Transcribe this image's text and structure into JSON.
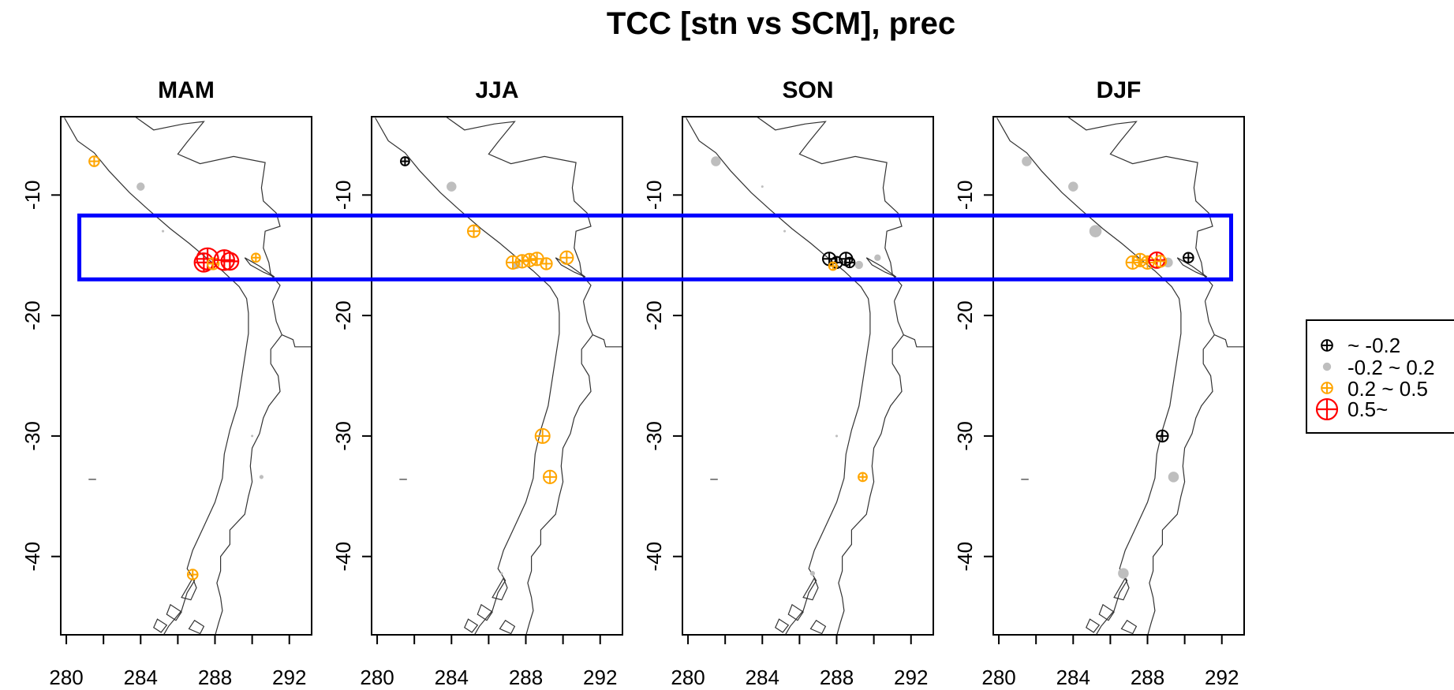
{
  "title": "TCC [stn vs SCM], prec",
  "panels": [
    {
      "name": "MAM"
    },
    {
      "name": "JJA"
    },
    {
      "name": "SON"
    },
    {
      "name": "DJF"
    }
  ],
  "x_ticks": [
    280,
    282,
    284,
    286,
    288,
    290,
    292
  ],
  "x_tick_labels": [
    "280",
    "284",
    "288",
    "292"
  ],
  "y_ticks": [
    -10,
    -20,
    -30,
    -40
  ],
  "y_tick_labels": [
    "-10",
    "-20",
    "-30",
    "-40"
  ],
  "lon_range": [
    279.7,
    293.2
  ],
  "lat_range": [
    -46.5,
    -3.5
  ],
  "legend": [
    {
      "key": "neg",
      "label": "~ -0.2"
    },
    {
      "key": "mid",
      "label": "-0.2 ~ 0.2"
    },
    {
      "key": "pos",
      "label": "0.2 ~ 0.5"
    },
    {
      "key": "high",
      "label": "0.5~"
    }
  ],
  "colors": {
    "neg": "#000000",
    "mid": "#bebebe",
    "pos": "#ffa500",
    "high": "#ff0000",
    "highlight_box": "#0000ff"
  },
  "highlight_box": {
    "lon": [
      280.7,
      292.5
    ],
    "lat": [
      -17.0,
      -11.7
    ]
  },
  "chart_data": {
    "type": "scatter",
    "title": "TCC [stn vs SCM], prec",
    "xlim": [
      279.7,
      293.2
    ],
    "ylim": [
      -46.5,
      -3.5
    ],
    "category_bins": [
      "~ -0.2",
      "-0.2 ~ 0.2",
      "0.2 ~ 0.5",
      "0.5~"
    ],
    "series": [
      {
        "name": "MAM",
        "points": [
          {
            "lon": 281.5,
            "lat": -7.2,
            "cat": "pos",
            "mag": 0.35
          },
          {
            "lon": 284.0,
            "lat": -9.3,
            "cat": "mid",
            "mag": 0.1
          },
          {
            "lon": 285.2,
            "lat": -13.0,
            "cat": "mid",
            "mag": 0.03
          },
          {
            "lon": 287.6,
            "lat": -15.3,
            "cat": "high",
            "mag": 0.75
          },
          {
            "lon": 287.4,
            "lat": -15.6,
            "cat": "high",
            "mag": 0.65
          },
          {
            "lon": 287.9,
            "lat": -15.7,
            "cat": "pos",
            "mag": 0.4
          },
          {
            "lon": 288.5,
            "lat": -15.4,
            "cat": "high",
            "mag": 0.7
          },
          {
            "lon": 288.8,
            "lat": -15.5,
            "cat": "high",
            "mag": 0.6
          },
          {
            "lon": 290.2,
            "lat": -15.2,
            "cat": "pos",
            "mag": 0.3
          },
          {
            "lon": 290.0,
            "lat": -30.0,
            "cat": "mid",
            "mag": 0.02
          },
          {
            "lon": 290.5,
            "lat": -33.4,
            "cat": "mid",
            "mag": 0.05
          },
          {
            "lon": 286.8,
            "lat": -41.5,
            "cat": "pos",
            "mag": 0.35
          }
        ]
      },
      {
        "name": "JJA",
        "points": [
          {
            "lon": 281.5,
            "lat": -7.2,
            "cat": "neg",
            "mag": 0.3
          },
          {
            "lon": 284.0,
            "lat": -9.3,
            "cat": "mid",
            "mag": 0.12
          },
          {
            "lon": 285.2,
            "lat": -13.0,
            "cat": "pos",
            "mag": 0.42
          },
          {
            "lon": 287.3,
            "lat": -15.6,
            "cat": "pos",
            "mag": 0.45
          },
          {
            "lon": 287.8,
            "lat": -15.5,
            "cat": "pos",
            "mag": 0.45
          },
          {
            "lon": 288.2,
            "lat": -15.4,
            "cat": "pos",
            "mag": 0.45
          },
          {
            "lon": 288.6,
            "lat": -15.3,
            "cat": "pos",
            "mag": 0.45
          },
          {
            "lon": 289.1,
            "lat": -15.7,
            "cat": "pos",
            "mag": 0.4
          },
          {
            "lon": 287.5,
            "lat": -15.8,
            "cat": "mid",
            "mag": 0.1
          },
          {
            "lon": 290.2,
            "lat": -15.2,
            "cat": "pos",
            "mag": 0.45
          },
          {
            "lon": 288.9,
            "lat": -30.0,
            "cat": "pos",
            "mag": 0.5
          },
          {
            "lon": 289.3,
            "lat": -33.4,
            "cat": "pos",
            "mag": 0.45
          },
          {
            "lon": 286.7,
            "lat": -41.4,
            "cat": "mid",
            "mag": 0.03
          }
        ]
      },
      {
        "name": "SON",
        "points": [
          {
            "lon": 281.5,
            "lat": -7.2,
            "cat": "mid",
            "mag": 0.12
          },
          {
            "lon": 284.0,
            "lat": -9.3,
            "cat": "mid",
            "mag": 0.01
          },
          {
            "lon": 285.2,
            "lat": -13.0,
            "cat": "mid",
            "mag": 0.02
          },
          {
            "lon": 287.6,
            "lat": -15.3,
            "cat": "neg",
            "mag": 0.45
          },
          {
            "lon": 288.0,
            "lat": -15.6,
            "cat": "neg",
            "mag": 0.4
          },
          {
            "lon": 288.5,
            "lat": -15.3,
            "cat": "neg",
            "mag": 0.45
          },
          {
            "lon": 288.7,
            "lat": -15.6,
            "cat": "neg",
            "mag": 0.35
          },
          {
            "lon": 287.8,
            "lat": -15.9,
            "cat": "pos",
            "mag": 0.25
          },
          {
            "lon": 289.2,
            "lat": -15.8,
            "cat": "mid",
            "mag": 0.1
          },
          {
            "lon": 290.2,
            "lat": -15.2,
            "cat": "mid",
            "mag": 0.08
          },
          {
            "lon": 288.0,
            "lat": -30.0,
            "cat": "mid",
            "mag": 0.03
          },
          {
            "lon": 289.4,
            "lat": -33.4,
            "cat": "pos",
            "mag": 0.3
          },
          {
            "lon": 286.7,
            "lat": -41.4,
            "cat": "mid",
            "mag": 0.06
          }
        ]
      },
      {
        "name": "DJF",
        "points": [
          {
            "lon": 281.5,
            "lat": -7.2,
            "cat": "mid",
            "mag": 0.12
          },
          {
            "lon": 284.0,
            "lat": -9.3,
            "cat": "mid",
            "mag": 0.12
          },
          {
            "lon": 285.2,
            "lat": -13.0,
            "cat": "mid",
            "mag": 0.15
          },
          {
            "lon": 287.2,
            "lat": -15.6,
            "cat": "pos",
            "mag": 0.45
          },
          {
            "lon": 287.6,
            "lat": -15.4,
            "cat": "pos",
            "mag": 0.45
          },
          {
            "lon": 288.0,
            "lat": -15.6,
            "cat": "pos",
            "mag": 0.45
          },
          {
            "lon": 288.5,
            "lat": -15.4,
            "cat": "high",
            "mag": 0.55
          },
          {
            "lon": 288.7,
            "lat": -15.5,
            "cat": "pos",
            "mag": 0.4
          },
          {
            "lon": 289.1,
            "lat": -15.6,
            "cat": "mid",
            "mag": 0.12
          },
          {
            "lon": 290.2,
            "lat": -15.2,
            "cat": "neg",
            "mag": 0.35
          },
          {
            "lon": 288.8,
            "lat": -30.0,
            "cat": "neg",
            "mag": 0.4
          },
          {
            "lon": 289.4,
            "lat": -33.4,
            "cat": "mid",
            "mag": 0.13
          },
          {
            "lon": 286.7,
            "lat": -41.4,
            "cat": "mid",
            "mag": 0.13
          }
        ]
      }
    ]
  }
}
